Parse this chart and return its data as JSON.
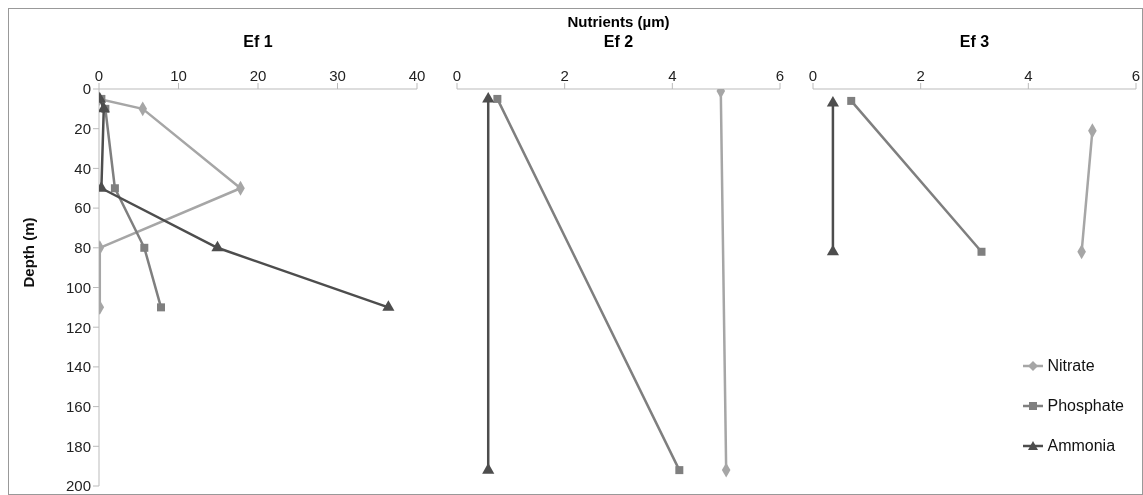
{
  "chart_data": [
    {
      "type": "line",
      "title": "Ef 1",
      "ylabel": "Depth (m)",
      "xlim": [
        0,
        40
      ],
      "xticks": [
        0,
        10,
        20,
        30,
        40
      ],
      "ylim": [
        200,
        0
      ],
      "yticks": [
        0,
        20,
        40,
        60,
        80,
        100,
        120,
        140,
        160,
        180,
        200
      ],
      "grid": false,
      "legend": false,
      "line_style": "solid",
      "series": [
        {
          "color": "#a6a6a6",
          "marker": "diamond",
          "x": [
            0,
            5.5,
            17.8,
            0.1,
            0.1
          ],
          "values": [
            5,
            10,
            50,
            80,
            110
          ]
        },
        {
          "color": "#7f7f7f",
          "marker": "square",
          "x": [
            0.3,
            0.8,
            2,
            5.7,
            7.8
          ],
          "values": [
            5,
            10,
            50,
            80,
            110
          ]
        },
        {
          "color": "#4d4d4d",
          "marker": "triangle",
          "x": [
            0.1,
            0.6,
            0.3,
            14.9,
            36.4
          ],
          "values": [
            5,
            10,
            50,
            80,
            110
          ]
        }
      ]
    },
    {
      "type": "line",
      "title": "Ef 2",
      "xlabel": "Nutrients (µm)",
      "xlim": [
        0,
        6
      ],
      "xticks": [
        0,
        2,
        4,
        6
      ],
      "ylim": [
        200,
        0
      ],
      "tick_labels": "x",
      "grid": false,
      "legend": false,
      "line_style": "solid",
      "series": [
        {
          "color": "#a6a6a6",
          "marker": "diamond",
          "x": [
            4.9,
            5.0
          ],
          "values": [
            1,
            192
          ]
        },
        {
          "color": "#7f7f7f",
          "marker": "square",
          "x": [
            0.75,
            4.13
          ],
          "values": [
            5,
            192
          ]
        },
        {
          "color": "#4d4d4d",
          "marker": "triangle",
          "x": [
            0.58,
            0.58
          ],
          "values": [
            5,
            192
          ]
        }
      ]
    },
    {
      "type": "line",
      "title": "Ef 3",
      "xlim": [
        0,
        6
      ],
      "xticks": [
        0,
        2,
        4,
        6
      ],
      "ylim": [
        200,
        0
      ],
      "tick_labels": "x",
      "grid": false,
      "legend": "bottom right",
      "line_style": "solid",
      "series": [
        {
          "name": "Nitrate",
          "color": "#a6a6a6",
          "marker": "diamond",
          "x": [
            5.19,
            4.99
          ],
          "values": [
            21,
            82
          ]
        },
        {
          "name": "Phosphate",
          "color": "#7f7f7f",
          "marker": "square",
          "x": [
            0.71,
            3.13
          ],
          "values": [
            6,
            82
          ]
        },
        {
          "name": "Ammonia",
          "color": "#4d4d4d",
          "marker": "triangle",
          "x": [
            0.37,
            0.37
          ],
          "values": [
            7,
            82
          ]
        }
      ]
    }
  ]
}
